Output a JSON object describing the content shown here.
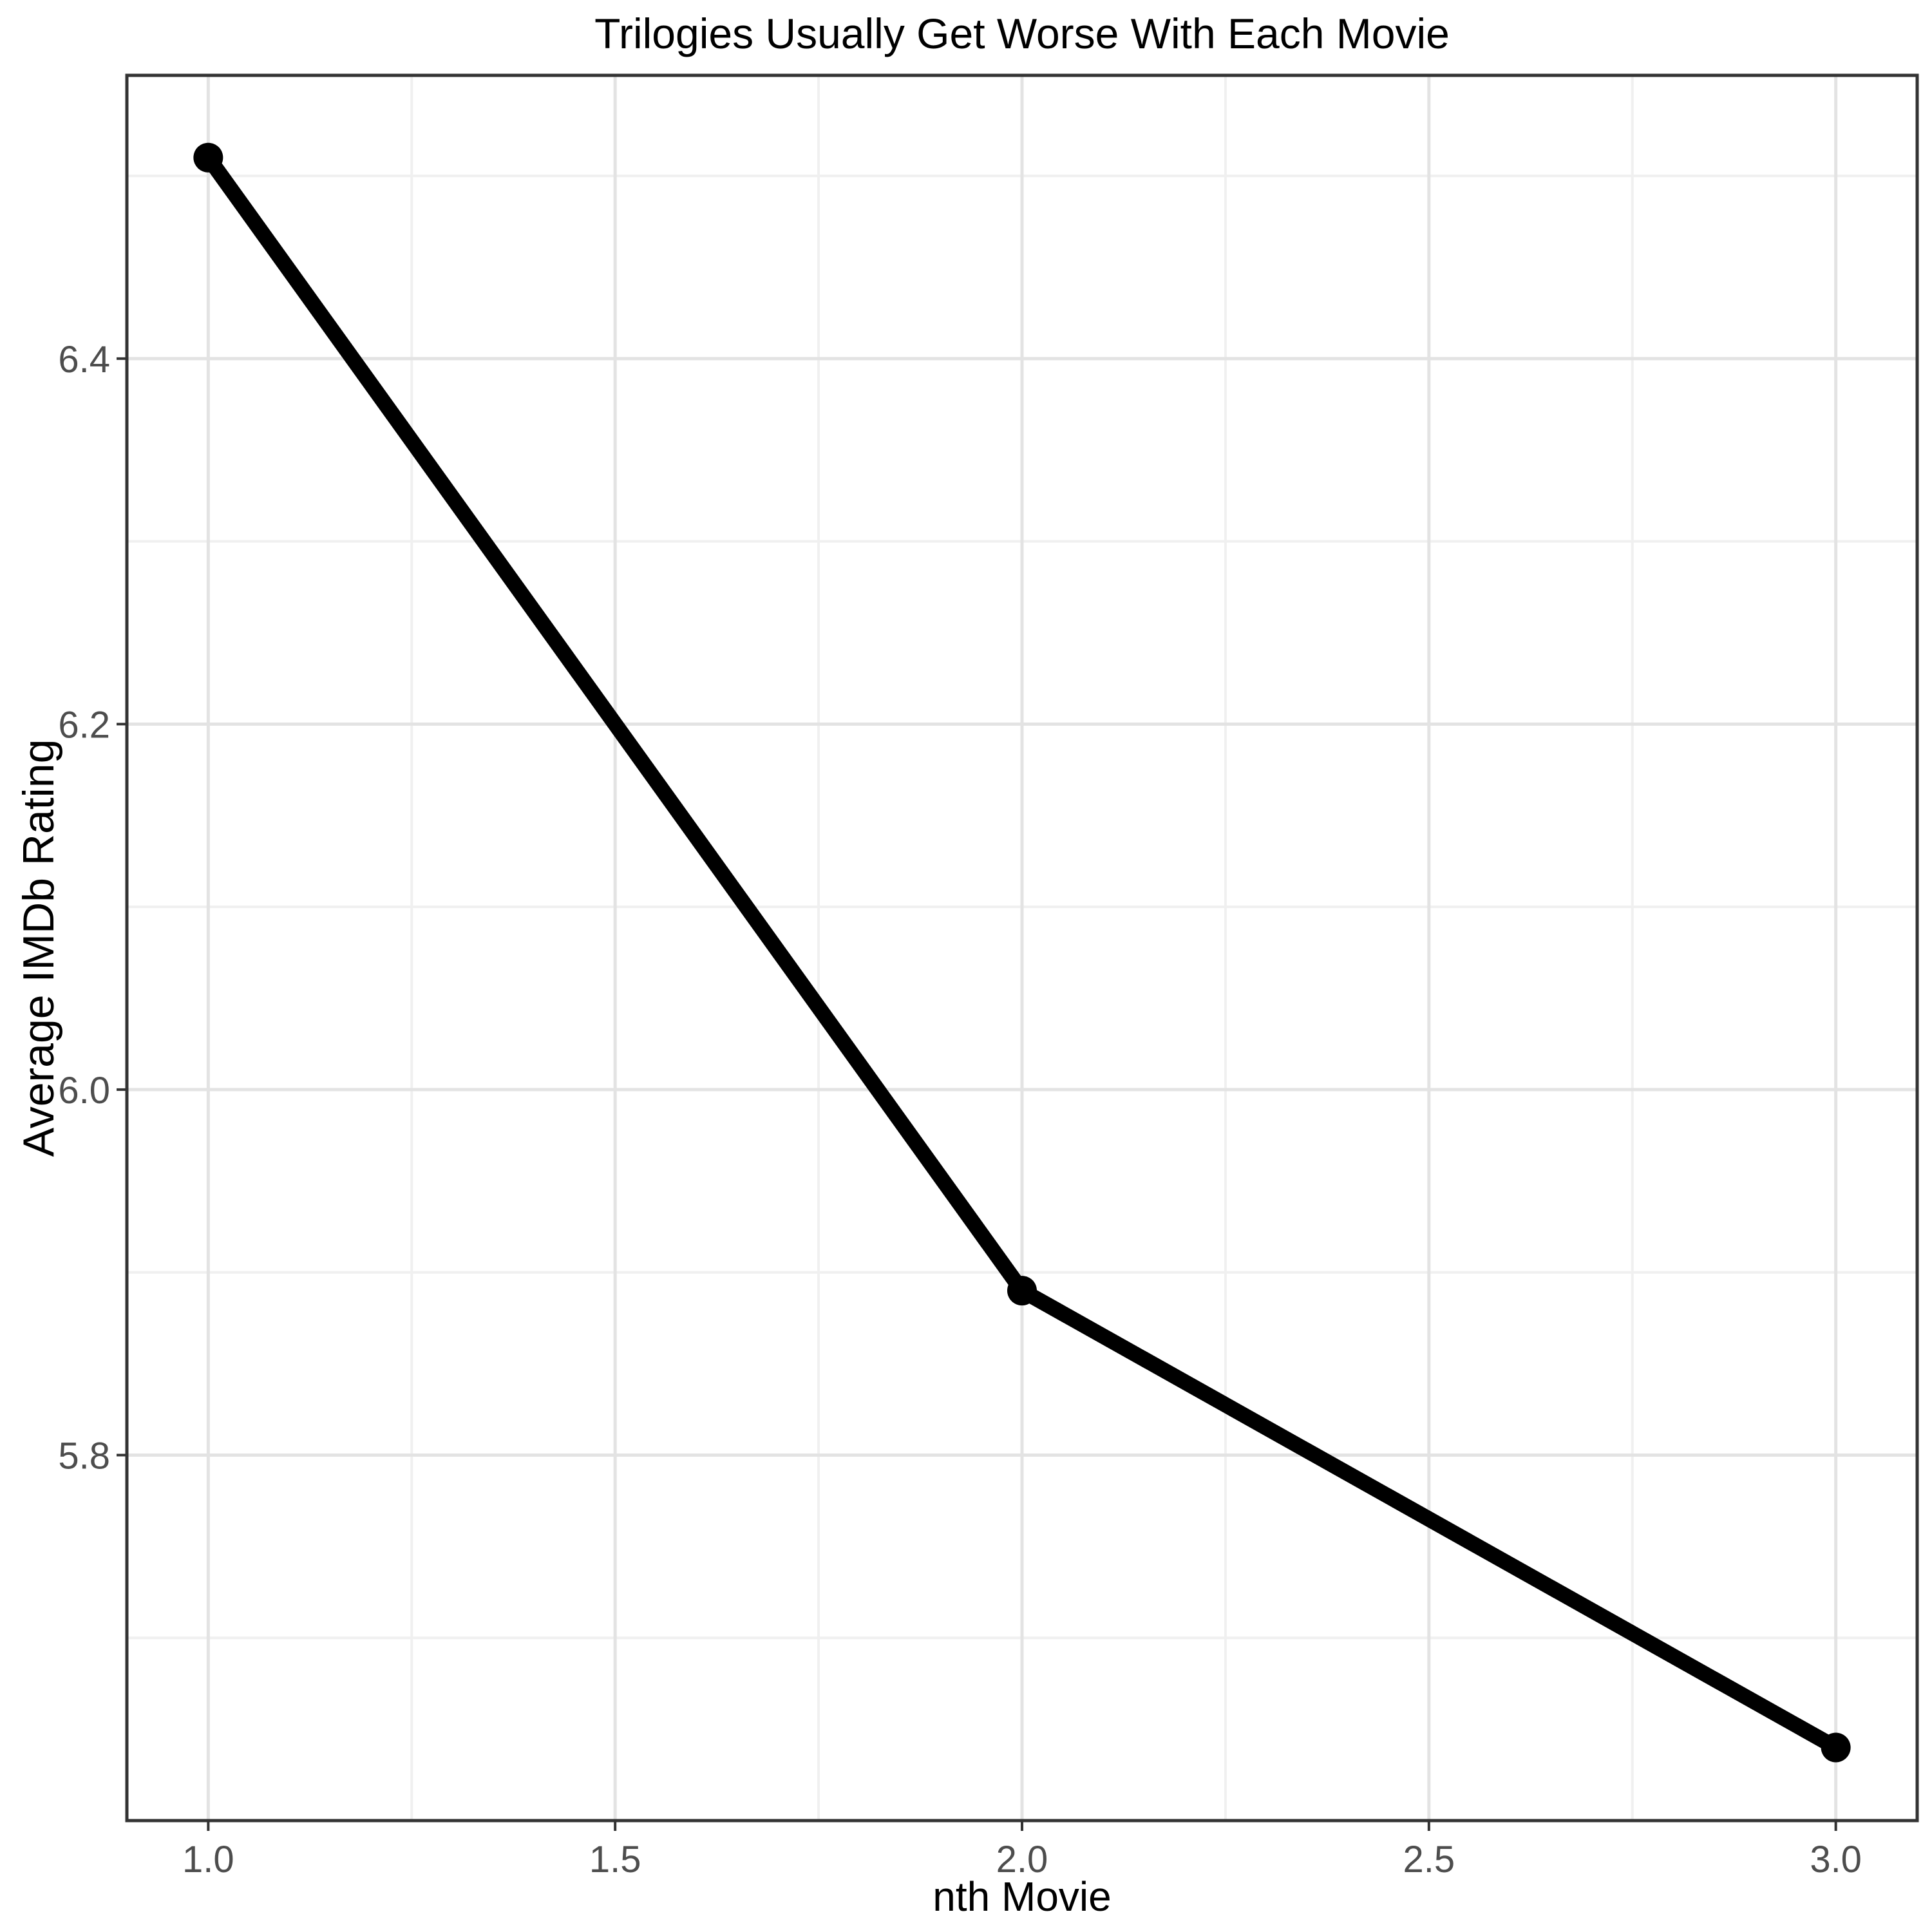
{
  "chart_data": {
    "type": "line",
    "title": "Trilogies Usually Get Worse With Each Movie",
    "xlabel": "nth Movie",
    "ylabel": "Average IMDb Rating",
    "x": [
      1,
      2,
      3
    ],
    "y": [
      6.51,
      5.89,
      5.64
    ],
    "xlim": [
      0.9,
      3.1
    ],
    "ylim": [
      5.6,
      6.555
    ],
    "x_major_ticks": [
      1.0,
      1.5,
      2.0,
      2.5,
      3.0
    ],
    "x_tick_labels": [
      "1.0",
      "1.5",
      "2.0",
      "2.5",
      "3.0"
    ],
    "x_minor_ticks": [
      1.25,
      1.75,
      2.25,
      2.75
    ],
    "y_major_ticks": [
      5.8,
      6.0,
      6.2,
      6.4
    ],
    "y_tick_labels": [
      "5.8",
      "6.0",
      "6.2",
      "6.4"
    ],
    "y_minor_ticks": [
      5.7,
      5.9,
      6.1,
      6.3,
      6.5
    ],
    "grid": true,
    "legend": false,
    "styles": {
      "line_color": "#000000",
      "point_color": "#000000",
      "major_grid_color": "#E3E3E3",
      "minor_grid_color": "#F0F0F0",
      "panel_border_color": "#333333",
      "tick_color": "#333333",
      "tick_label_color": "#4D4D4D",
      "title_color": "#000000",
      "axis_title_color": "#000000",
      "background": "#FFFFFF"
    }
  }
}
